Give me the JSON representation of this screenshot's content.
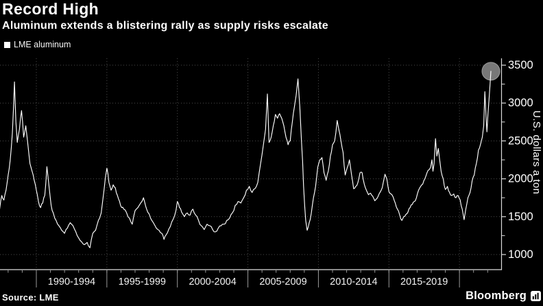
{
  "header": {
    "title": "Record High",
    "subtitle": "Aluminum extends a blistering rally as supply risks escalate"
  },
  "legend": {
    "label": "LME aluminum"
  },
  "footer": {
    "source": "Source: LME",
    "brand": "Bloomberg"
  },
  "colors": {
    "background": "#000000",
    "line": "#ffffff",
    "grid": "#4d4d4d",
    "axis": "#dcdcdc",
    "tick": "#9a9a9a",
    "text": "#ffffff",
    "band_label": "#f2f2f2",
    "marker": "#787878",
    "marker_rim": "#9d9d9d"
  },
  "chart_data": {
    "type": "line",
    "title": "Record High",
    "subtitle": "Aluminum extends a blistering rally as supply risks escalate",
    "xlabel": "",
    "ylabel": "U.S. dollars a ton",
    "ylim": [
      800,
      3590
    ],
    "x_range": [
      1987.4,
      2022.3
    ],
    "y_ticks": [
      1000,
      1500,
      2000,
      2500,
      3000,
      3500
    ],
    "y_minor_ticks": [
      1250,
      1750,
      2250,
      2750,
      3250
    ],
    "x_gridlines": [
      1990,
      1995,
      2000,
      2005,
      2010,
      2015,
      2020
    ],
    "x_bands": [
      {
        "label": "1990-1994",
        "start": 1990,
        "end": 1995
      },
      {
        "label": "1995-1999",
        "start": 1995,
        "end": 2000
      },
      {
        "label": "2000-2004",
        "start": 2000,
        "end": 2005
      },
      {
        "label": "2005-2009",
        "start": 2005,
        "end": 2010
      },
      {
        "label": "2010-2014",
        "start": 2010,
        "end": 2015
      },
      {
        "label": "2015-2019",
        "start": 2015,
        "end": 2020
      }
    ],
    "grid": "dotted",
    "legend_position": "top-left",
    "series": [
      {
        "name": "LME aluminum",
        "color": "#ffffff",
        "points": [
          [
            1987.4,
            1600
          ],
          [
            1987.55,
            1780
          ],
          [
            1987.7,
            1720
          ],
          [
            1987.85,
            1850
          ],
          [
            1988.0,
            2050
          ],
          [
            1988.15,
            2250
          ],
          [
            1988.3,
            2600
          ],
          [
            1988.45,
            3280
          ],
          [
            1988.55,
            2750
          ],
          [
            1988.65,
            2480
          ],
          [
            1988.8,
            2650
          ],
          [
            1988.95,
            2900
          ],
          [
            1989.1,
            2550
          ],
          [
            1989.25,
            2700
          ],
          [
            1989.4,
            2450
          ],
          [
            1989.55,
            2200
          ],
          [
            1989.7,
            2100
          ],
          [
            1989.85,
            1980
          ],
          [
            1990.0,
            1850
          ],
          [
            1990.15,
            1700
          ],
          [
            1990.3,
            1620
          ],
          [
            1990.45,
            1680
          ],
          [
            1990.6,
            1780
          ],
          [
            1990.75,
            2160
          ],
          [
            1990.9,
            1900
          ],
          [
            1991.05,
            1650
          ],
          [
            1991.2,
            1550
          ],
          [
            1991.4,
            1450
          ],
          [
            1991.6,
            1380
          ],
          [
            1991.8,
            1320
          ],
          [
            1992.0,
            1280
          ],
          [
            1992.2,
            1350
          ],
          [
            1992.4,
            1420
          ],
          [
            1992.6,
            1380
          ],
          [
            1992.8,
            1300
          ],
          [
            1993.0,
            1220
          ],
          [
            1993.2,
            1170
          ],
          [
            1993.4,
            1130
          ],
          [
            1993.6,
            1160
          ],
          [
            1993.8,
            1090
          ],
          [
            1994.0,
            1280
          ],
          [
            1994.2,
            1320
          ],
          [
            1994.4,
            1450
          ],
          [
            1994.6,
            1550
          ],
          [
            1994.8,
            1850
          ],
          [
            1995.0,
            2140
          ],
          [
            1995.15,
            1950
          ],
          [
            1995.3,
            1850
          ],
          [
            1995.45,
            1920
          ],
          [
            1995.6,
            1880
          ],
          [
            1995.75,
            1780
          ],
          [
            1995.9,
            1700
          ],
          [
            1996.05,
            1620
          ],
          [
            1996.2,
            1600
          ],
          [
            1996.4,
            1550
          ],
          [
            1996.6,
            1480
          ],
          [
            1996.8,
            1400
          ],
          [
            1997.0,
            1580
          ],
          [
            1997.2,
            1620
          ],
          [
            1997.4,
            1680
          ],
          [
            1997.6,
            1750
          ],
          [
            1997.75,
            1640
          ],
          [
            1997.9,
            1560
          ],
          [
            1998.1,
            1480
          ],
          [
            1998.3,
            1420
          ],
          [
            1998.5,
            1350
          ],
          [
            1998.7,
            1320
          ],
          [
            1998.9,
            1280
          ],
          [
            1999.05,
            1200
          ],
          [
            1999.2,
            1260
          ],
          [
            1999.4,
            1340
          ],
          [
            1999.6,
            1430
          ],
          [
            1999.8,
            1510
          ],
          [
            2000.0,
            1700
          ],
          [
            2000.15,
            1620
          ],
          [
            2000.3,
            1560
          ],
          [
            2000.5,
            1500
          ],
          [
            2000.7,
            1550
          ],
          [
            2000.9,
            1520
          ],
          [
            2001.1,
            1600
          ],
          [
            2001.3,
            1520
          ],
          [
            2001.5,
            1450
          ],
          [
            2001.7,
            1380
          ],
          [
            2001.9,
            1330
          ],
          [
            2002.1,
            1400
          ],
          [
            2002.3,
            1380
          ],
          [
            2002.5,
            1330
          ],
          [
            2002.7,
            1300
          ],
          [
            2002.9,
            1350
          ],
          [
            2003.1,
            1380
          ],
          [
            2003.3,
            1400
          ],
          [
            2003.5,
            1450
          ],
          [
            2003.7,
            1480
          ],
          [
            2003.9,
            1550
          ],
          [
            2004.1,
            1650
          ],
          [
            2004.3,
            1700
          ],
          [
            2004.5,
            1680
          ],
          [
            2004.7,
            1750
          ],
          [
            2004.9,
            1850
          ],
          [
            2005.1,
            1900
          ],
          [
            2005.3,
            1820
          ],
          [
            2005.5,
            1870
          ],
          [
            2005.7,
            1950
          ],
          [
            2005.9,
            2200
          ],
          [
            2006.1,
            2450
          ],
          [
            2006.25,
            2650
          ],
          [
            2006.38,
            3120
          ],
          [
            2006.5,
            2480
          ],
          [
            2006.65,
            2550
          ],
          [
            2006.8,
            2700
          ],
          [
            2006.95,
            2850
          ],
          [
            2007.1,
            2800
          ],
          [
            2007.25,
            2860
          ],
          [
            2007.4,
            2800
          ],
          [
            2007.55,
            2700
          ],
          [
            2007.7,
            2550
          ],
          [
            2007.85,
            2450
          ],
          [
            2008.0,
            2500
          ],
          [
            2008.15,
            2750
          ],
          [
            2008.3,
            2950
          ],
          [
            2008.42,
            3100
          ],
          [
            2008.55,
            3320
          ],
          [
            2008.68,
            2950
          ],
          [
            2008.8,
            2500
          ],
          [
            2008.95,
            1900
          ],
          [
            2009.1,
            1450
          ],
          [
            2009.2,
            1320
          ],
          [
            2009.35,
            1420
          ],
          [
            2009.5,
            1550
          ],
          [
            2009.65,
            1750
          ],
          [
            2009.8,
            1900
          ],
          [
            2009.95,
            2150
          ],
          [
            2010.1,
            2250
          ],
          [
            2010.25,
            2280
          ],
          [
            2010.4,
            2080
          ],
          [
            2010.55,
            1980
          ],
          [
            2010.7,
            2100
          ],
          [
            2010.85,
            2300
          ],
          [
            2011.0,
            2450
          ],
          [
            2011.15,
            2500
          ],
          [
            2011.33,
            2770
          ],
          [
            2011.45,
            2650
          ],
          [
            2011.6,
            2500
          ],
          [
            2011.75,
            2350
          ],
          [
            2011.9,
            2050
          ],
          [
            2012.05,
            2150
          ],
          [
            2012.2,
            2250
          ],
          [
            2012.35,
            2050
          ],
          [
            2012.5,
            1870
          ],
          [
            2012.65,
            1900
          ],
          [
            2012.8,
            1950
          ],
          [
            2012.95,
            2080
          ],
          [
            2013.1,
            2080
          ],
          [
            2013.25,
            1930
          ],
          [
            2013.4,
            1850
          ],
          [
            2013.55,
            1790
          ],
          [
            2013.7,
            1810
          ],
          [
            2013.85,
            1770
          ],
          [
            2014.0,
            1710
          ],
          [
            2014.15,
            1740
          ],
          [
            2014.3,
            1800
          ],
          [
            2014.45,
            1850
          ],
          [
            2014.6,
            1950
          ],
          [
            2014.72,
            2060
          ],
          [
            2014.85,
            2000
          ],
          [
            2015.0,
            1830
          ],
          [
            2015.15,
            1800
          ],
          [
            2015.3,
            1760
          ],
          [
            2015.45,
            1680
          ],
          [
            2015.6,
            1600
          ],
          [
            2015.75,
            1530
          ],
          [
            2015.92,
            1450
          ],
          [
            2016.05,
            1500
          ],
          [
            2016.2,
            1530
          ],
          [
            2016.35,
            1560
          ],
          [
            2016.5,
            1620
          ],
          [
            2016.65,
            1660
          ],
          [
            2016.8,
            1700
          ],
          [
            2016.95,
            1750
          ],
          [
            2017.1,
            1850
          ],
          [
            2017.25,
            1900
          ],
          [
            2017.4,
            1930
          ],
          [
            2017.55,
            2000
          ],
          [
            2017.7,
            2080
          ],
          [
            2017.85,
            2120
          ],
          [
            2017.95,
            2150
          ],
          [
            2018.05,
            2250
          ],
          [
            2018.12,
            2100
          ],
          [
            2018.2,
            2200
          ],
          [
            2018.3,
            2530
          ],
          [
            2018.4,
            2300
          ],
          [
            2018.5,
            2400
          ],
          [
            2018.6,
            2250
          ],
          [
            2018.7,
            2100
          ],
          [
            2018.85,
            2000
          ],
          [
            2019.0,
            1860
          ],
          [
            2019.15,
            1900
          ],
          [
            2019.3,
            1820
          ],
          [
            2019.45,
            1780
          ],
          [
            2019.6,
            1800
          ],
          [
            2019.75,
            1750
          ],
          [
            2019.9,
            1780
          ],
          [
            2020.05,
            1720
          ],
          [
            2020.2,
            1600
          ],
          [
            2020.33,
            1460
          ],
          [
            2020.45,
            1600
          ],
          [
            2020.6,
            1750
          ],
          [
            2020.75,
            1820
          ],
          [
            2020.9,
            1970
          ],
          [
            2021.05,
            2050
          ],
          [
            2021.2,
            2200
          ],
          [
            2021.35,
            2380
          ],
          [
            2021.5,
            2460
          ],
          [
            2021.62,
            2550
          ],
          [
            2021.72,
            2700
          ],
          [
            2021.8,
            3150
          ],
          [
            2021.88,
            2850
          ],
          [
            2021.95,
            2620
          ],
          [
            2022.02,
            2850
          ],
          [
            2022.1,
            3050
          ],
          [
            2022.17,
            3250
          ],
          [
            2022.23,
            3420
          ]
        ]
      }
    ],
    "end_marker": {
      "year": 2022.23,
      "value": 3420,
      "shape": "circle",
      "color": "#787878"
    }
  }
}
